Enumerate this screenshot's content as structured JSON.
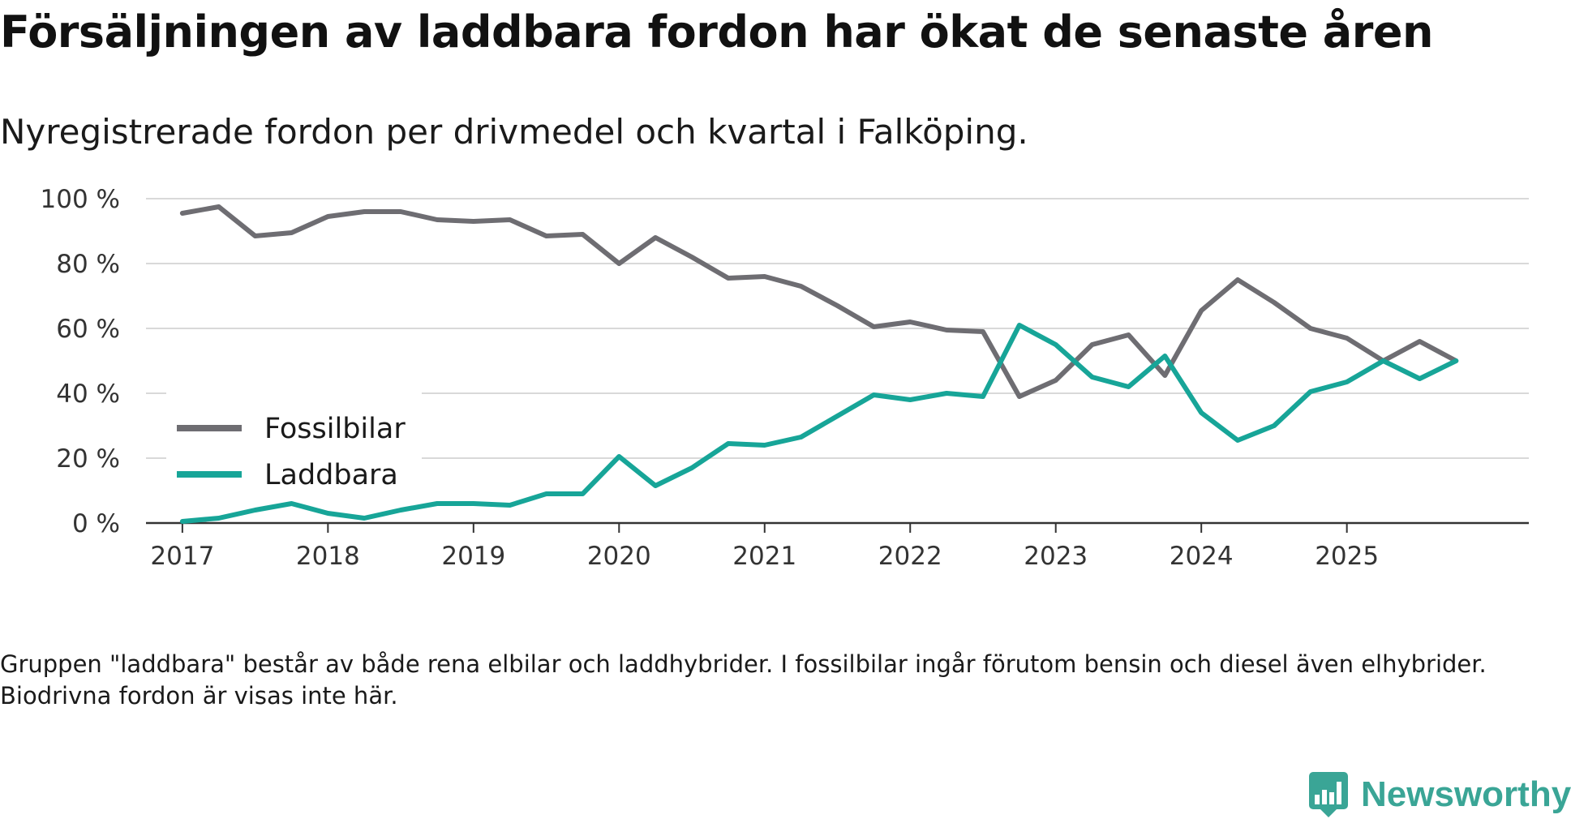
{
  "title": "Försäljningen av laddbara fordon har ökat de senaste åren",
  "subtitle": "Nyregistrerade fordon per drivmedel och kvartal i Falköping.",
  "footnote": "Gruppen \"laddbara\" består av både rena elbilar och laddhybrider. I fossilbilar ingår förutom bensin och diesel även elhybrider. Biodrivna fordon är visas inte här.",
  "brand": {
    "name": "Newsworthy",
    "color": "#3aa596"
  },
  "chart_data": {
    "type": "line",
    "title": "Försäljningen av laddbara fordon har ökat de senaste åren",
    "subtitle": "Nyregistrerade fordon per drivmedel och kvartal i Falköping.",
    "xlabel": "",
    "ylabel": "",
    "ylim": [
      0,
      100
    ],
    "yticks": [
      0,
      20,
      40,
      60,
      80,
      100
    ],
    "ytick_labels": [
      "0 %",
      "20 %",
      "40 %",
      "60 %",
      "80 %",
      "100 %"
    ],
    "xlim": [
      2016.75,
      2026.25
    ],
    "xticks": [
      2017,
      2018,
      2019,
      2020,
      2021,
      2022,
      2023,
      2024,
      2025
    ],
    "xtick_labels": [
      "2017",
      "2018",
      "2019",
      "2020",
      "2021",
      "2022",
      "2023",
      "2024",
      "2025"
    ],
    "grid": true,
    "legend_position": "bottom-left",
    "x": [
      2017.0,
      2017.25,
      2017.5,
      2017.75,
      2018.0,
      2018.25,
      2018.5,
      2018.75,
      2019.0,
      2019.25,
      2019.5,
      2019.75,
      2020.0,
      2020.25,
      2020.5,
      2020.75,
      2021.0,
      2021.25,
      2021.5,
      2021.75,
      2022.0,
      2022.25,
      2022.5,
      2022.75,
      2023.0,
      2023.25,
      2023.5,
      2023.75,
      2024.0,
      2024.25,
      2024.5,
      2024.75,
      2025.0,
      2025.25,
      2025.5,
      2025.75
    ],
    "series": [
      {
        "name": "Fossilbilar",
        "color": "#6e6d72",
        "values": [
          95.5,
          97.5,
          88.5,
          89.5,
          94.5,
          96,
          96,
          93.5,
          93,
          93.5,
          88.5,
          89,
          80,
          88,
          82,
          75.5,
          76,
          73,
          67,
          60.5,
          62,
          59.5,
          59,
          39,
          44,
          55,
          58,
          45.5,
          65.5,
          75,
          68,
          60,
          57,
          50,
          56,
          50
        ]
      },
      {
        "name": "Laddbara",
        "color": "#17a598",
        "values": [
          0.5,
          1.5,
          4,
          6,
          3,
          1.5,
          4,
          6,
          6,
          5.5,
          9,
          9,
          20.5,
          11.5,
          17,
          24.5,
          24,
          26.5,
          33,
          39.5,
          38,
          40,
          39,
          61,
          55,
          45,
          42,
          51.5,
          34,
          25.5,
          30,
          40.5,
          43.5,
          50,
          44.5,
          50
        ]
      }
    ]
  }
}
